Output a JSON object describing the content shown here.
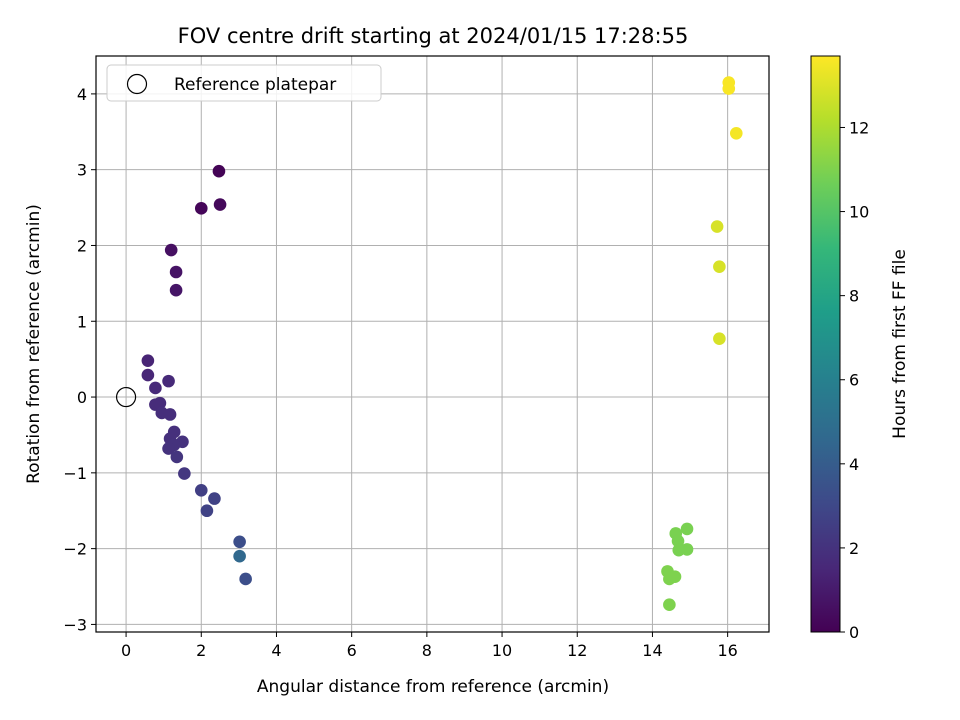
{
  "chart_data": {
    "type": "scatter",
    "title": "FOV centre drift starting at 2024/01/15 17:28:55",
    "xlabel": "Angular distance from reference (arcmin)",
    "ylabel": "Rotation from reference (arcmin)",
    "xlim": [
      -0.8,
      17.1
    ],
    "ylim": [
      -3.1,
      4.5
    ],
    "xticks": [
      0,
      2,
      4,
      6,
      8,
      10,
      12,
      14,
      16
    ],
    "yticks": [
      -3,
      -2,
      -1,
      0,
      1,
      2,
      3,
      4
    ],
    "xtick_labels": [
      "0",
      "2",
      "4",
      "6",
      "8",
      "10",
      "12",
      "14",
      "16"
    ],
    "ytick_labels": [
      "−3",
      "−2",
      "−1",
      "0",
      "1",
      "2",
      "3",
      "4"
    ],
    "grid": true,
    "legend": {
      "location": "upper-left",
      "entries": [
        "Reference platepar"
      ]
    },
    "reference_point": {
      "x": 0,
      "y": 0,
      "marker": "open-circle"
    },
    "colorbar": {
      "label": "Hours from first FF file",
      "range": [
        0,
        13.7
      ],
      "ticks": [
        0,
        2,
        4,
        6,
        8,
        10,
        12
      ],
      "tick_labels": [
        "0",
        "2",
        "4",
        "6",
        "8",
        "10",
        "12"
      ],
      "colormap": [
        "#440154",
        "#482878",
        "#3e4989",
        "#31688e",
        "#26828e",
        "#1f9e89",
        "#35b779",
        "#6ece58",
        "#b5de2b",
        "#fde725"
      ]
    },
    "points": [
      {
        "x": 2.47,
        "y": 2.98,
        "hours": 0.1
      },
      {
        "x": 2.0,
        "y": 2.49,
        "hours": 0.2
      },
      {
        "x": 2.5,
        "y": 2.54,
        "hours": 0.3
      },
      {
        "x": 1.2,
        "y": 1.94,
        "hours": 0.6
      },
      {
        "x": 1.33,
        "y": 1.65,
        "hours": 0.7
      },
      {
        "x": 1.33,
        "y": 1.41,
        "hours": 0.8
      },
      {
        "x": 0.58,
        "y": 0.48,
        "hours": 1.4
      },
      {
        "x": 0.58,
        "y": 0.29,
        "hours": 1.5
      },
      {
        "x": 0.78,
        "y": 0.12,
        "hours": 1.6
      },
      {
        "x": 1.13,
        "y": 0.21,
        "hours": 1.6
      },
      {
        "x": 0.78,
        "y": -0.1,
        "hours": 1.7
      },
      {
        "x": 0.9,
        "y": -0.08,
        "hours": 1.7
      },
      {
        "x": 0.95,
        "y": -0.21,
        "hours": 1.8
      },
      {
        "x": 1.17,
        "y": -0.23,
        "hours": 1.8
      },
      {
        "x": 1.28,
        "y": -0.46,
        "hours": 1.9
      },
      {
        "x": 1.17,
        "y": -0.55,
        "hours": 1.9
      },
      {
        "x": 1.5,
        "y": -0.59,
        "hours": 2.0
      },
      {
        "x": 1.28,
        "y": -0.63,
        "hours": 2.0
      },
      {
        "x": 1.13,
        "y": -0.68,
        "hours": 2.0
      },
      {
        "x": 1.35,
        "y": -0.79,
        "hours": 2.1
      },
      {
        "x": 1.55,
        "y": -1.01,
        "hours": 2.2
      },
      {
        "x": 2.0,
        "y": -1.23,
        "hours": 2.6
      },
      {
        "x": 2.35,
        "y": -1.34,
        "hours": 2.7
      },
      {
        "x": 2.15,
        "y": -1.5,
        "hours": 2.7
      },
      {
        "x": 3.02,
        "y": -1.91,
        "hours": 3.3
      },
      {
        "x": 3.18,
        "y": -2.4,
        "hours": 3.3
      },
      {
        "x": 3.02,
        "y": -2.1,
        "hours": 4.6
      },
      {
        "x": 14.92,
        "y": -1.74,
        "hours": 10.9
      },
      {
        "x": 14.62,
        "y": -1.8,
        "hours": 10.9
      },
      {
        "x": 14.68,
        "y": -1.9,
        "hours": 10.9
      },
      {
        "x": 14.92,
        "y": -2.01,
        "hours": 10.9
      },
      {
        "x": 14.7,
        "y": -2.02,
        "hours": 10.9
      },
      {
        "x": 14.4,
        "y": -2.3,
        "hours": 11.0
      },
      {
        "x": 14.6,
        "y": -2.37,
        "hours": 11.0
      },
      {
        "x": 14.45,
        "y": -2.4,
        "hours": 11.0
      },
      {
        "x": 14.45,
        "y": -2.74,
        "hours": 11.0
      },
      {
        "x": 15.72,
        "y": 2.25,
        "hours": 12.9
      },
      {
        "x": 15.78,
        "y": 1.72,
        "hours": 12.9
      },
      {
        "x": 15.78,
        "y": 0.77,
        "hours": 12.9
      },
      {
        "x": 16.23,
        "y": 3.48,
        "hours": 13.5
      },
      {
        "x": 16.03,
        "y": 4.15,
        "hours": 13.6
      },
      {
        "x": 16.03,
        "y": 4.07,
        "hours": 13.6
      }
    ]
  }
}
